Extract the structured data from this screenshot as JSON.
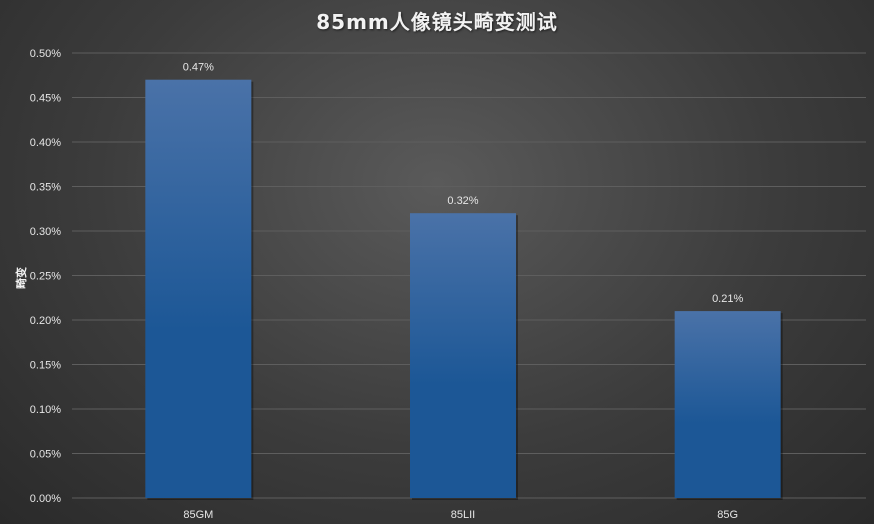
{
  "chart_data": {
    "type": "bar",
    "title": "85mm人像镜头畸变测试",
    "ylabel": "畸变",
    "xlabel": "",
    "categories": [
      "85GM",
      "85LII",
      "85G"
    ],
    "values": [
      0.47,
      0.32,
      0.21
    ],
    "value_labels": [
      "0.47%",
      "0.32%",
      "0.21%"
    ],
    "ylim": [
      0,
      0.5
    ],
    "yticks": [
      0,
      0.05,
      0.1,
      0.15,
      0.2,
      0.25,
      0.3,
      0.35,
      0.4,
      0.45,
      0.5
    ],
    "ytick_labels": [
      "0.00%",
      "0.05%",
      "0.10%",
      "0.15%",
      "0.20%",
      "0.25%",
      "0.30%",
      "0.35%",
      "0.40%",
      "0.45%",
      "0.50%"
    ],
    "grid": true,
    "legend": "none",
    "colors": {
      "bar_top": "#4a72a8",
      "bar_bottom": "#1c5796",
      "grid": "#5e5e5e",
      "text": "#e6e6e6"
    }
  }
}
